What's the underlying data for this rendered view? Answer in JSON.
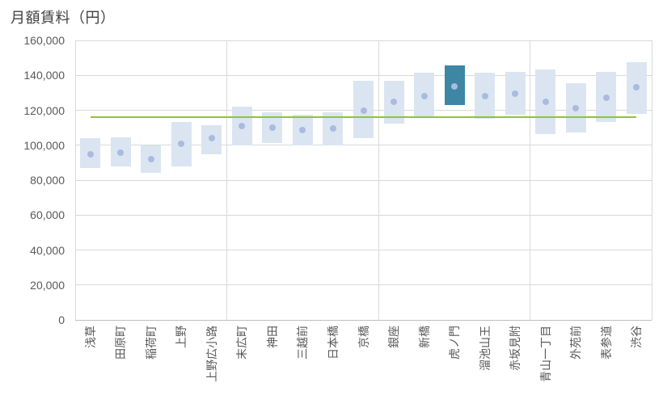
{
  "title": "月額賃料（円）",
  "colors": {
    "box": "#dbe5f2",
    "highlight_box": "#3d86a4",
    "dot": "#a9bbde",
    "reference_line": "#90c33d",
    "gridline": "#d9d9d9",
    "axis_line": "#bfbfbf",
    "title_text": "#404040",
    "axis_text": "#595959"
  },
  "chart_data": {
    "type": "range-bar-with-dot",
    "title": "月額賃料（円）",
    "ylabel": "月額賃料（円）",
    "xlabel": "",
    "ylim": [
      0,
      160000
    ],
    "ytick_step": 20000,
    "ytick_labels": [
      "0",
      "20,000",
      "40,000",
      "60,000",
      "80,000",
      "100,000",
      "120,000",
      "140,000",
      "160,000"
    ],
    "grid": "horizontal major gridlines on; vertical divider lines every 5 categories",
    "legend": "none",
    "reference_line": {
      "value": 116000,
      "label": "",
      "color": "#90c33d"
    },
    "highlighted_category": "虎ノ門",
    "categories": [
      "浅草",
      "田原町",
      "稲荷町",
      "上野",
      "上野広小路",
      "末広町",
      "神田",
      "三越前",
      "日本橋",
      "京橋",
      "銀座",
      "新橋",
      "虎ノ門",
      "溜池山王",
      "赤坂見附",
      "青山一丁目",
      "外苑前",
      "表参道",
      "渋谷"
    ],
    "series": [
      {
        "name": "range_min",
        "values": [
          87000,
          88000,
          84000,
          88000,
          95000,
          100000,
          101500,
          100000,
          100000,
          104000,
          112500,
          116500,
          123000,
          115000,
          117500,
          106500,
          107500,
          113500,
          118000
        ]
      },
      {
        "name": "range_max",
        "values": [
          104000,
          104500,
          100000,
          113500,
          111500,
          122000,
          119000,
          117500,
          119000,
          137000,
          137000,
          141500,
          145500,
          141500,
          142000,
          143500,
          135500,
          142000,
          147500
        ]
      },
      {
        "name": "dot_value",
        "values": [
          95000,
          95500,
          92000,
          101000,
          104000,
          111000,
          110000,
          108500,
          109500,
          120000,
          125000,
          128000,
          133500,
          128000,
          129500,
          125000,
          121000,
          127000,
          133000
        ]
      }
    ],
    "points": [
      {
        "name": "浅草",
        "min": 87000,
        "max": 104000,
        "dot": 95000,
        "highlight": false
      },
      {
        "name": "田原町",
        "min": 88000,
        "max": 104500,
        "dot": 95500,
        "highlight": false
      },
      {
        "name": "稲荷町",
        "min": 84000,
        "max": 100000,
        "dot": 92000,
        "highlight": false
      },
      {
        "name": "上野",
        "min": 88000,
        "max": 113500,
        "dot": 101000,
        "highlight": false
      },
      {
        "name": "上野広小路",
        "min": 95000,
        "max": 111500,
        "dot": 104000,
        "highlight": false
      },
      {
        "name": "末広町",
        "min": 100000,
        "max": 122000,
        "dot": 111000,
        "highlight": false
      },
      {
        "name": "神田",
        "min": 101500,
        "max": 119000,
        "dot": 110000,
        "highlight": false
      },
      {
        "name": "三越前",
        "min": 100000,
        "max": 117500,
        "dot": 108500,
        "highlight": false
      },
      {
        "name": "日本橋",
        "min": 100000,
        "max": 119000,
        "dot": 109500,
        "highlight": false
      },
      {
        "name": "京橋",
        "min": 104000,
        "max": 137000,
        "dot": 120000,
        "highlight": false
      },
      {
        "name": "銀座",
        "min": 112500,
        "max": 137000,
        "dot": 125000,
        "highlight": false
      },
      {
        "name": "新橋",
        "min": 116500,
        "max": 141500,
        "dot": 128000,
        "highlight": false
      },
      {
        "name": "虎ノ門",
        "min": 123000,
        "max": 145500,
        "dot": 133500,
        "highlight": true
      },
      {
        "name": "溜池山王",
        "min": 115000,
        "max": 141500,
        "dot": 128000,
        "highlight": false
      },
      {
        "name": "赤坂見附",
        "min": 117500,
        "max": 142000,
        "dot": 129500,
        "highlight": false
      },
      {
        "name": "青山一丁目",
        "min": 106500,
        "max": 143500,
        "dot": 125000,
        "highlight": false
      },
      {
        "name": "外苑前",
        "min": 107500,
        "max": 135500,
        "dot": 121000,
        "highlight": false
      },
      {
        "name": "表参道",
        "min": 113500,
        "max": 142000,
        "dot": 127000,
        "highlight": false
      },
      {
        "name": "渋谷",
        "min": 118000,
        "max": 147500,
        "dot": 133000,
        "highlight": false
      }
    ]
  }
}
